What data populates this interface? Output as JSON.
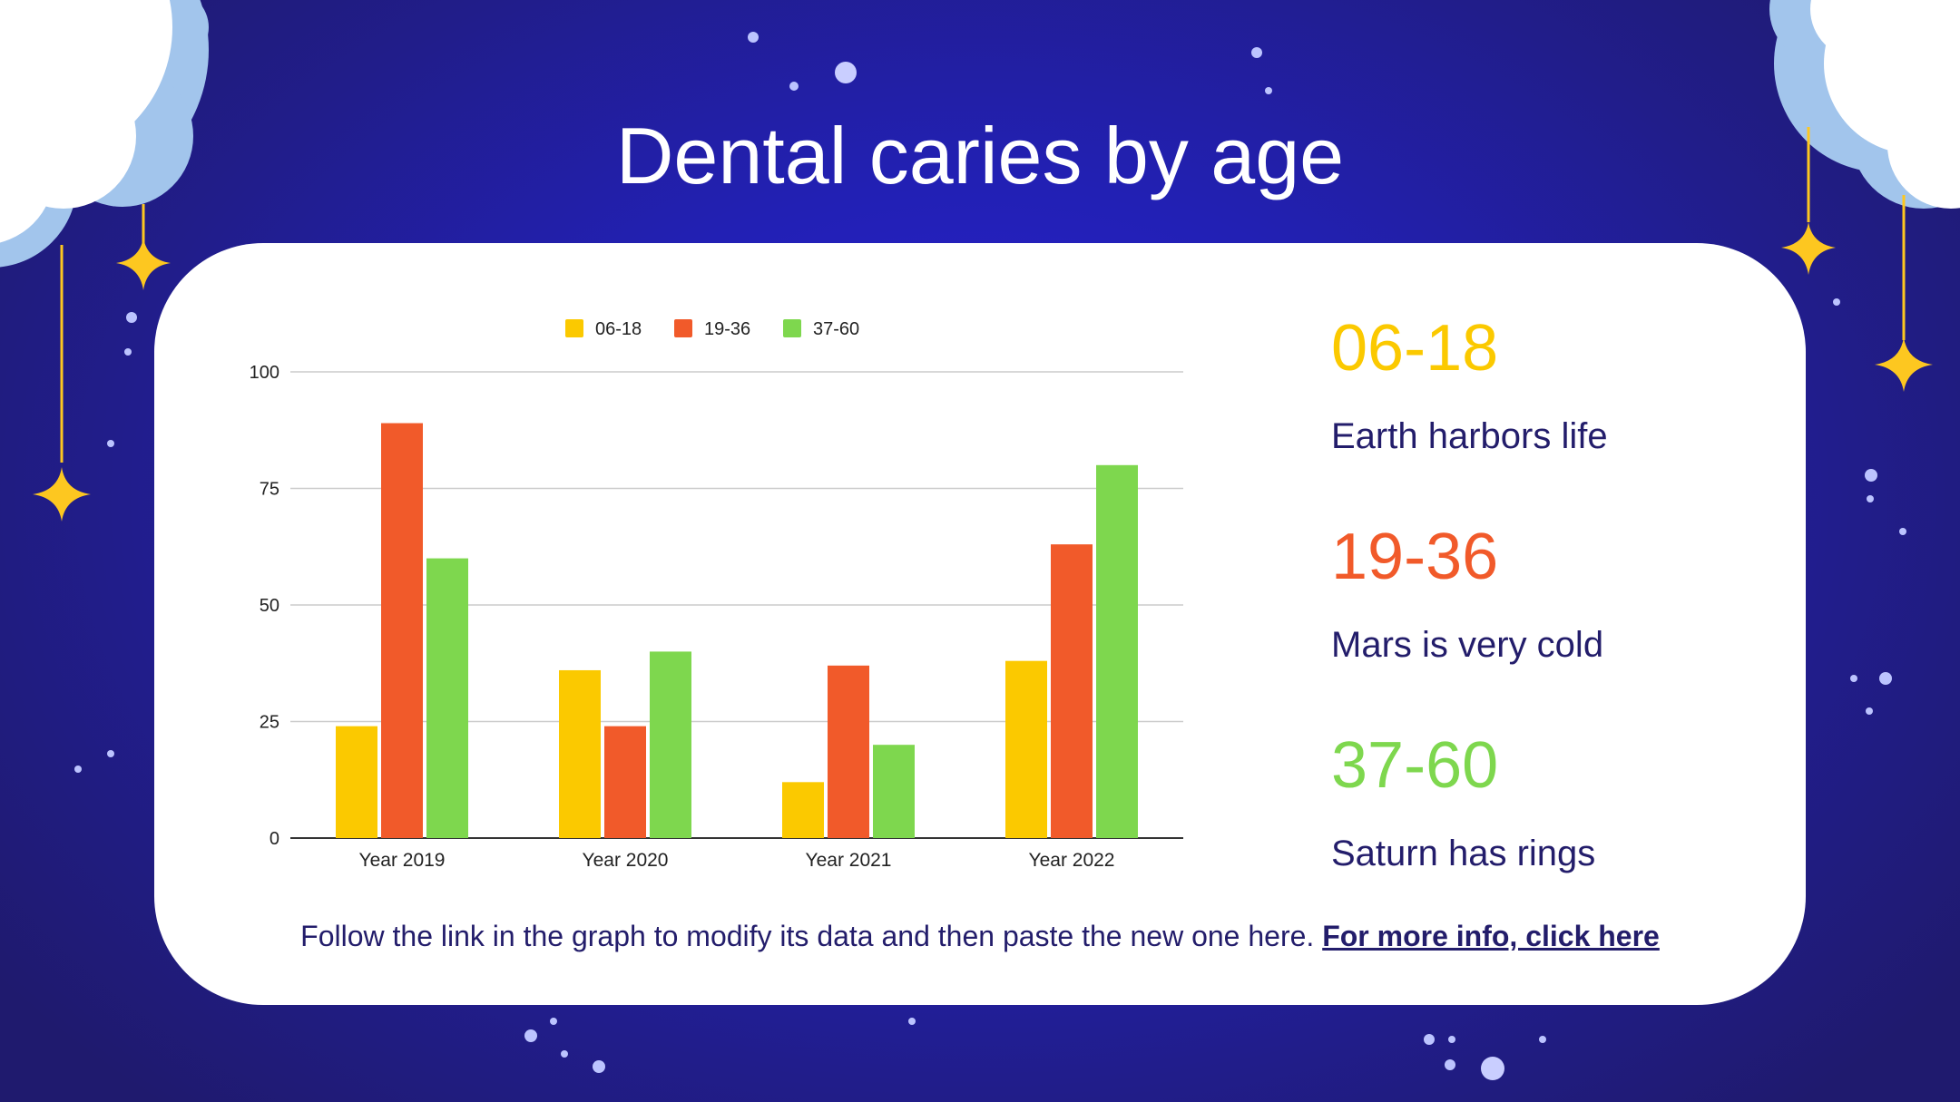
{
  "slide": {
    "title": "Dental caries by age",
    "sidebar": [
      {
        "range": "06-18",
        "text": "Earth harbors life",
        "color": "#fbc900"
      },
      {
        "range": "19-36",
        "text": "Mars is very cold",
        "color": "#f15a2a"
      },
      {
        "range": "37-60",
        "text": "Saturn has rings",
        "color": "#7ed74e"
      }
    ],
    "footnote": {
      "text": "Follow the link in the graph to modify its data and then paste the new one here. ",
      "link_label": "For more info, click here"
    },
    "colors": {
      "text_dark": "#231d6b",
      "star": "#fdc720",
      "cloud_light": "#a2c5ec",
      "bg": "#2220b4"
    }
  },
  "chart_data": {
    "type": "bar",
    "title": "",
    "xlabel": "",
    "ylabel": "",
    "categories": [
      "Year 2019",
      "Year 2020",
      "Year 2021",
      "Year 2022"
    ],
    "series": [
      {
        "name": "06-18",
        "values": [
          24,
          36,
          12,
          38
        ],
        "color": "#fbc900"
      },
      {
        "name": "19-36",
        "values": [
          89,
          24,
          37,
          63
        ],
        "color": "#f15a2a"
      },
      {
        "name": "37-60",
        "values": [
          60,
          40,
          20,
          80
        ],
        "color": "#7ed74e"
      }
    ],
    "ylim": [
      0,
      100
    ],
    "yticks": [
      0,
      25,
      50,
      75,
      100
    ],
    "grid": true,
    "legend": "top-center"
  }
}
